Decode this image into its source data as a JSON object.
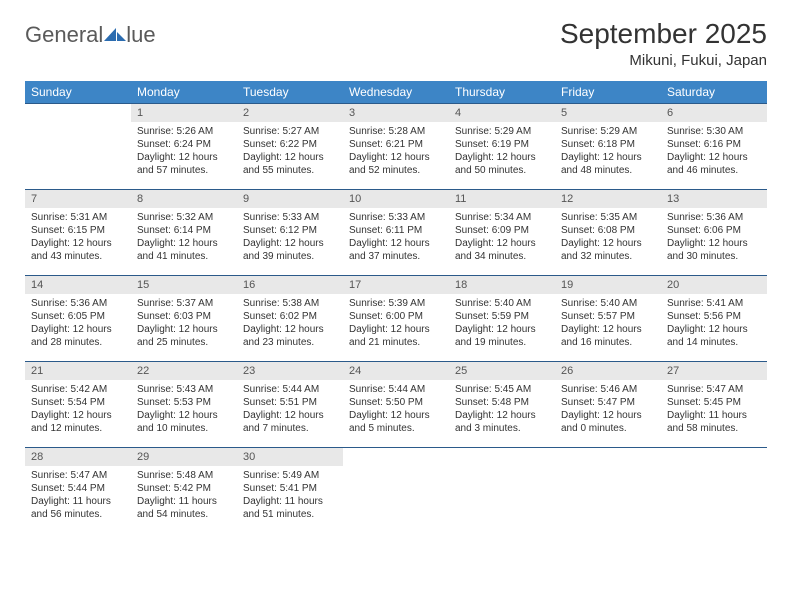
{
  "logo": {
    "text_left": "General",
    "text_right": "lue",
    "mark_color": "#2b6cb0"
  },
  "title": "September 2025",
  "location": "Mikuni, Fukui, Japan",
  "colors": {
    "header_bg": "#3d85c6",
    "header_text": "#ffffff",
    "daynum_bg": "#e8e8e8",
    "daynum_text": "#555555",
    "body_text": "#333333",
    "row_border": "#2b5a8a",
    "page_bg": "#ffffff"
  },
  "day_headers": [
    "Sunday",
    "Monday",
    "Tuesday",
    "Wednesday",
    "Thursday",
    "Friday",
    "Saturday"
  ],
  "weeks": [
    [
      {
        "num": "",
        "lines": []
      },
      {
        "num": "1",
        "lines": [
          "Sunrise: 5:26 AM",
          "Sunset: 6:24 PM",
          "Daylight: 12 hours",
          "and 57 minutes."
        ]
      },
      {
        "num": "2",
        "lines": [
          "Sunrise: 5:27 AM",
          "Sunset: 6:22 PM",
          "Daylight: 12 hours",
          "and 55 minutes."
        ]
      },
      {
        "num": "3",
        "lines": [
          "Sunrise: 5:28 AM",
          "Sunset: 6:21 PM",
          "Daylight: 12 hours",
          "and 52 minutes."
        ]
      },
      {
        "num": "4",
        "lines": [
          "Sunrise: 5:29 AM",
          "Sunset: 6:19 PM",
          "Daylight: 12 hours",
          "and 50 minutes."
        ]
      },
      {
        "num": "5",
        "lines": [
          "Sunrise: 5:29 AM",
          "Sunset: 6:18 PM",
          "Daylight: 12 hours",
          "and 48 minutes."
        ]
      },
      {
        "num": "6",
        "lines": [
          "Sunrise: 5:30 AM",
          "Sunset: 6:16 PM",
          "Daylight: 12 hours",
          "and 46 minutes."
        ]
      }
    ],
    [
      {
        "num": "7",
        "lines": [
          "Sunrise: 5:31 AM",
          "Sunset: 6:15 PM",
          "Daylight: 12 hours",
          "and 43 minutes."
        ]
      },
      {
        "num": "8",
        "lines": [
          "Sunrise: 5:32 AM",
          "Sunset: 6:14 PM",
          "Daylight: 12 hours",
          "and 41 minutes."
        ]
      },
      {
        "num": "9",
        "lines": [
          "Sunrise: 5:33 AM",
          "Sunset: 6:12 PM",
          "Daylight: 12 hours",
          "and 39 minutes."
        ]
      },
      {
        "num": "10",
        "lines": [
          "Sunrise: 5:33 AM",
          "Sunset: 6:11 PM",
          "Daylight: 12 hours",
          "and 37 minutes."
        ]
      },
      {
        "num": "11",
        "lines": [
          "Sunrise: 5:34 AM",
          "Sunset: 6:09 PM",
          "Daylight: 12 hours",
          "and 34 minutes."
        ]
      },
      {
        "num": "12",
        "lines": [
          "Sunrise: 5:35 AM",
          "Sunset: 6:08 PM",
          "Daylight: 12 hours",
          "and 32 minutes."
        ]
      },
      {
        "num": "13",
        "lines": [
          "Sunrise: 5:36 AM",
          "Sunset: 6:06 PM",
          "Daylight: 12 hours",
          "and 30 minutes."
        ]
      }
    ],
    [
      {
        "num": "14",
        "lines": [
          "Sunrise: 5:36 AM",
          "Sunset: 6:05 PM",
          "Daylight: 12 hours",
          "and 28 minutes."
        ]
      },
      {
        "num": "15",
        "lines": [
          "Sunrise: 5:37 AM",
          "Sunset: 6:03 PM",
          "Daylight: 12 hours",
          "and 25 minutes."
        ]
      },
      {
        "num": "16",
        "lines": [
          "Sunrise: 5:38 AM",
          "Sunset: 6:02 PM",
          "Daylight: 12 hours",
          "and 23 minutes."
        ]
      },
      {
        "num": "17",
        "lines": [
          "Sunrise: 5:39 AM",
          "Sunset: 6:00 PM",
          "Daylight: 12 hours",
          "and 21 minutes."
        ]
      },
      {
        "num": "18",
        "lines": [
          "Sunrise: 5:40 AM",
          "Sunset: 5:59 PM",
          "Daylight: 12 hours",
          "and 19 minutes."
        ]
      },
      {
        "num": "19",
        "lines": [
          "Sunrise: 5:40 AM",
          "Sunset: 5:57 PM",
          "Daylight: 12 hours",
          "and 16 minutes."
        ]
      },
      {
        "num": "20",
        "lines": [
          "Sunrise: 5:41 AM",
          "Sunset: 5:56 PM",
          "Daylight: 12 hours",
          "and 14 minutes."
        ]
      }
    ],
    [
      {
        "num": "21",
        "lines": [
          "Sunrise: 5:42 AM",
          "Sunset: 5:54 PM",
          "Daylight: 12 hours",
          "and 12 minutes."
        ]
      },
      {
        "num": "22",
        "lines": [
          "Sunrise: 5:43 AM",
          "Sunset: 5:53 PM",
          "Daylight: 12 hours",
          "and 10 minutes."
        ]
      },
      {
        "num": "23",
        "lines": [
          "Sunrise: 5:44 AM",
          "Sunset: 5:51 PM",
          "Daylight: 12 hours",
          "and 7 minutes."
        ]
      },
      {
        "num": "24",
        "lines": [
          "Sunrise: 5:44 AM",
          "Sunset: 5:50 PM",
          "Daylight: 12 hours",
          "and 5 minutes."
        ]
      },
      {
        "num": "25",
        "lines": [
          "Sunrise: 5:45 AM",
          "Sunset: 5:48 PM",
          "Daylight: 12 hours",
          "and 3 minutes."
        ]
      },
      {
        "num": "26",
        "lines": [
          "Sunrise: 5:46 AM",
          "Sunset: 5:47 PM",
          "Daylight: 12 hours",
          "and 0 minutes."
        ]
      },
      {
        "num": "27",
        "lines": [
          "Sunrise: 5:47 AM",
          "Sunset: 5:45 PM",
          "Daylight: 11 hours",
          "and 58 minutes."
        ]
      }
    ],
    [
      {
        "num": "28",
        "lines": [
          "Sunrise: 5:47 AM",
          "Sunset: 5:44 PM",
          "Daylight: 11 hours",
          "and 56 minutes."
        ]
      },
      {
        "num": "29",
        "lines": [
          "Sunrise: 5:48 AM",
          "Sunset: 5:42 PM",
          "Daylight: 11 hours",
          "and 54 minutes."
        ]
      },
      {
        "num": "30",
        "lines": [
          "Sunrise: 5:49 AM",
          "Sunset: 5:41 PM",
          "Daylight: 11 hours",
          "and 51 minutes."
        ]
      },
      {
        "num": "",
        "lines": []
      },
      {
        "num": "",
        "lines": []
      },
      {
        "num": "",
        "lines": []
      },
      {
        "num": "",
        "lines": []
      }
    ]
  ]
}
